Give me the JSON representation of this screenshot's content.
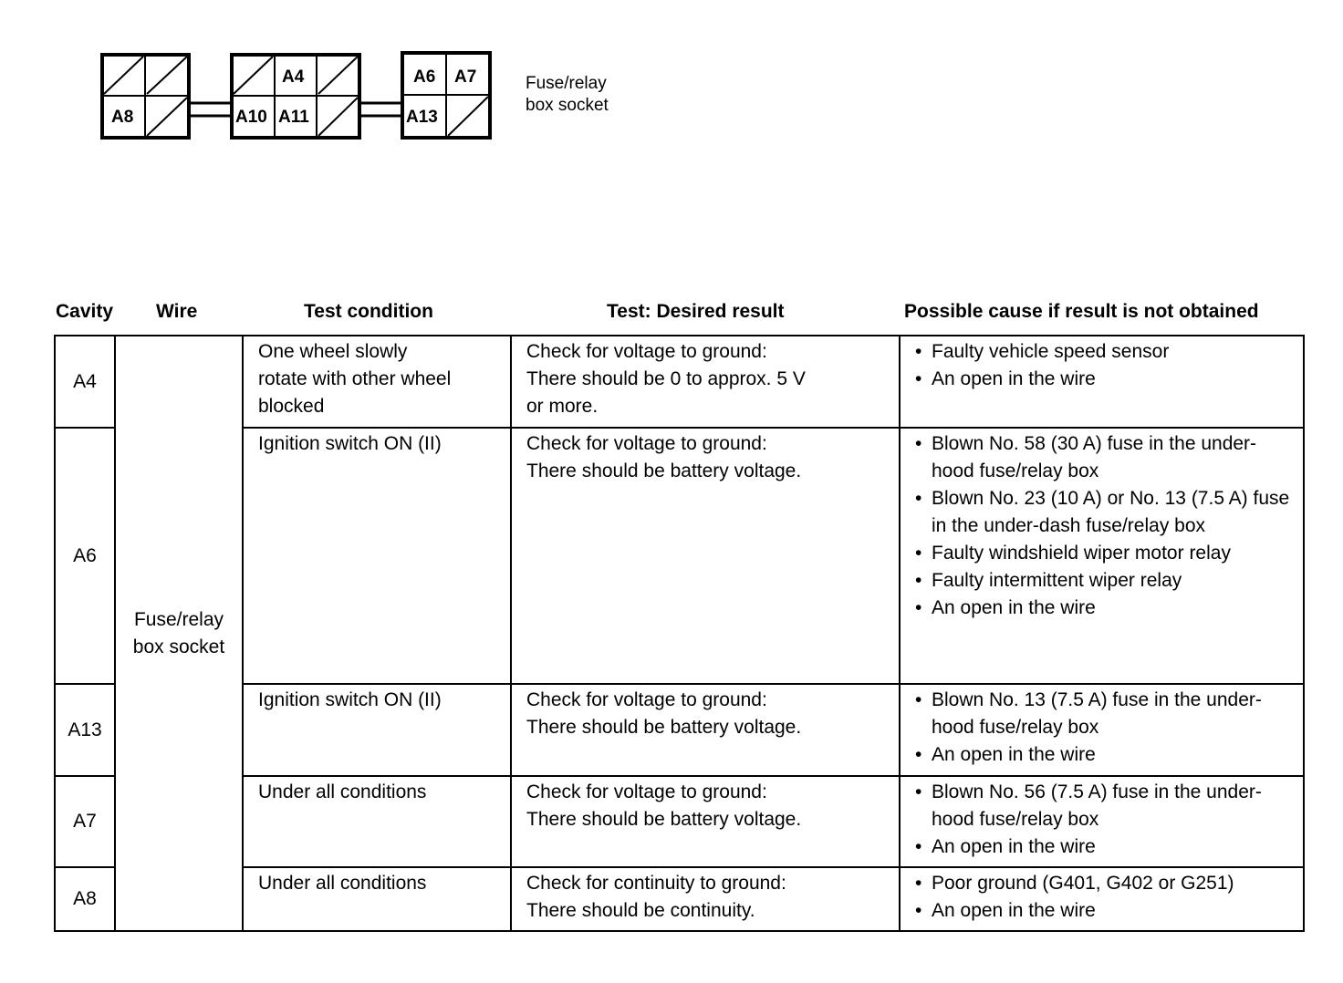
{
  "diagram": {
    "label": "Fuse/relay\nbox socket",
    "pins": {
      "a8": "A8",
      "a4": "A4",
      "a10": "A10",
      "a11": "A11",
      "a6": "A6",
      "a7": "A7",
      "a13": "A13"
    }
  },
  "headers": {
    "cavity": "Cavity",
    "wire": "Wire",
    "condition": "Test condition",
    "result": "Test: Desired result",
    "cause": "Possible cause if result is not obtained"
  },
  "wire": "Fuse/relay\nbox socket",
  "rows": [
    {
      "cavity": "A4",
      "condition": "One wheel slowly\nrotate with other wheel\nblocked",
      "result": "Check for voltage to ground:\nThere should be 0 to approx. 5 V\nor more.",
      "causes": [
        "Faulty vehicle speed sensor",
        "An open in the wire"
      ]
    },
    {
      "cavity": "A6",
      "condition": "Ignition switch ON (II)",
      "result": "Check for voltage to ground:\nThere should be battery voltage.",
      "causes": [
        "Blown No. 58 (30 A) fuse in the under-hood fuse/relay box",
        "Blown No. 23 (10 A) or No. 13 (7.5 A) fuse in the under-dash fuse/relay box",
        "Faulty windshield wiper motor relay",
        "Faulty intermittent wiper relay",
        "An open in the wire"
      ]
    },
    {
      "cavity": "A13",
      "condition": "Ignition switch ON (II)",
      "result": "Check for voltage to ground:\nThere should be battery voltage.",
      "causes": [
        "Blown No. 13 (7.5 A) fuse in the under-hood fuse/relay box",
        "An open in the wire"
      ]
    },
    {
      "cavity": "A7",
      "condition": "Under all conditions",
      "result": "Check for voltage to ground:\nThere should be battery voltage.",
      "causes": [
        "Blown No. 56 (7.5 A) fuse in the under-hood fuse/relay box",
        "An open in the wire"
      ]
    },
    {
      "cavity": "A8",
      "condition": "Under all conditions",
      "result": "Check for continuity to ground:\nThere should be continuity.",
      "causes": [
        "Poor ground (G401, G402 or G251)",
        "An open in the wire"
      ]
    }
  ]
}
